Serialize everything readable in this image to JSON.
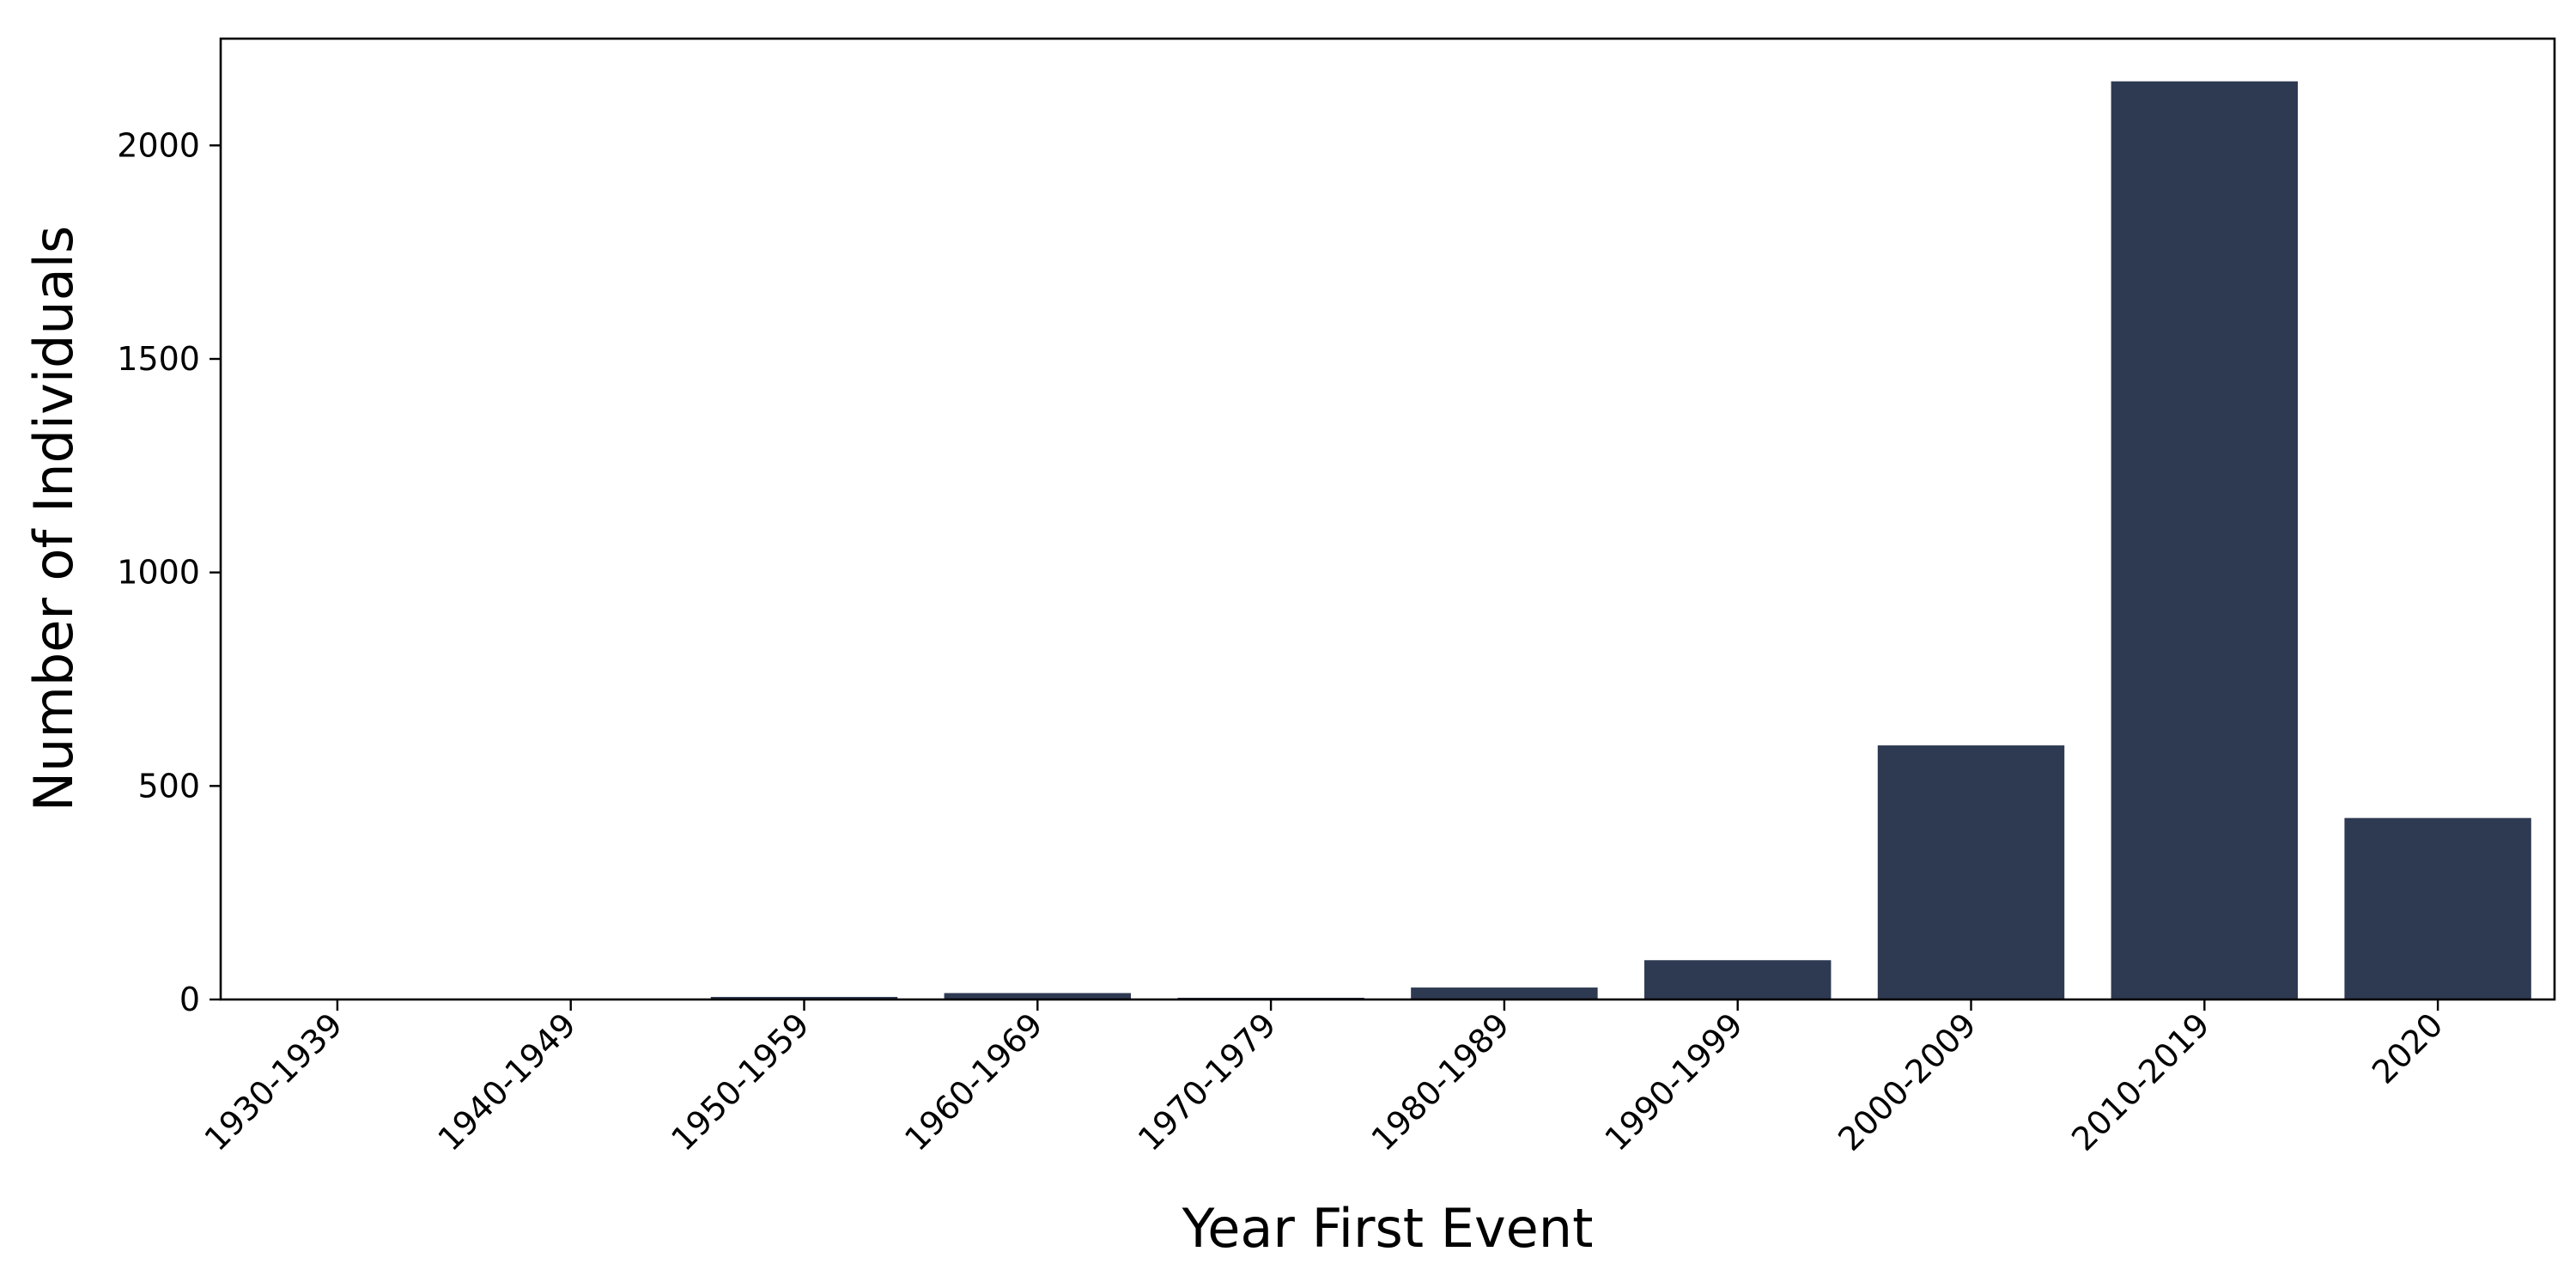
{
  "chart_data": {
    "type": "bar",
    "categories": [
      "1930-1939",
      "1940-1949",
      "1950-1959",
      "1960-1969",
      "1970-1979",
      "1980-1989",
      "1990-1999",
      "2000-2009",
      "2010-2019",
      "2020"
    ],
    "values": [
      2,
      1,
      6,
      15,
      4,
      28,
      92,
      595,
      2150,
      425
    ],
    "xlabel": "Year First Event",
    "ylabel": "Number of Individuals",
    "ylim": [
      0,
      2250
    ],
    "yticks": [
      0,
      500,
      1000,
      1500,
      2000
    ],
    "bar_color": "#2e3a52",
    "grid": false,
    "legend": "none"
  }
}
